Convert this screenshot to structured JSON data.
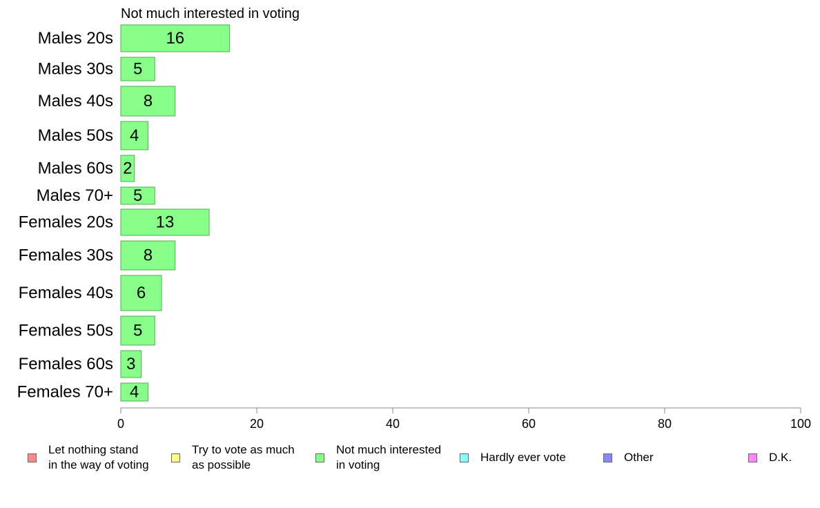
{
  "chart_data": {
    "type": "bar",
    "orientation": "horizontal",
    "title": "Not much interested in voting",
    "categories": [
      "Males 20s",
      "Males 30s",
      "Males 40s",
      "Males 50s",
      "Males 60s",
      "Males 70+",
      "Females 20s",
      "Females 30s",
      "Females 40s",
      "Females 50s",
      "Females 60s",
      "Females 70+"
    ],
    "values": [
      16,
      5,
      8,
      4,
      2,
      5,
      13,
      8,
      6,
      5,
      3,
      4
    ],
    "xlim": [
      0,
      100
    ],
    "xticks": [
      "0",
      "20",
      "40",
      "60",
      "80",
      "100"
    ],
    "grid": false,
    "bar_color": "#88ff88",
    "legend_position": "bottom",
    "legend": [
      {
        "label": "Let nothing stand\nin the way of voting",
        "color": "#ff8888"
      },
      {
        "label": "Try to vote as much\nas possible",
        "color": "#ffff88"
      },
      {
        "label": "Not much interested\nin voting",
        "color": "#88ff88"
      },
      {
        "label": "Hardly ever vote",
        "color": "#88ffff"
      },
      {
        "label": "Other",
        "color": "#8888ff"
      },
      {
        "label": "D.K.",
        "color": "#ff88ff"
      }
    ]
  }
}
